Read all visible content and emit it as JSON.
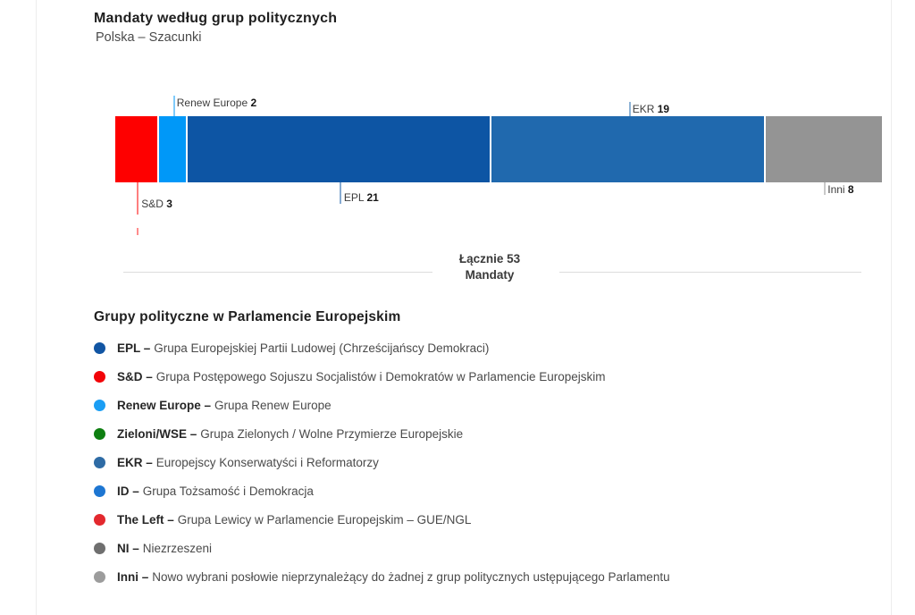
{
  "header": {
    "title": "Mandaty według grup politycznych",
    "subtitle": "Polska – Szacunki"
  },
  "chart_data": {
    "type": "bar",
    "title": "Mandaty według grup politycznych",
    "subtitle": "Polska – Szacunki",
    "orientation": "horizontal-stacked",
    "total": 53,
    "total_label": "Łącznie 53",
    "total_sublabel": "Mandaty",
    "segments": [
      {
        "name": "S&D",
        "value": 3,
        "color": "#fe0000",
        "label_side": "below"
      },
      {
        "name": "Renew Europe",
        "value": 2,
        "color": "#0098f8",
        "label_side": "above"
      },
      {
        "name": "EPL",
        "value": 21,
        "color": "#0d55a4",
        "label_side": "below"
      },
      {
        "name": "EKR",
        "value": 19,
        "color": "#2069ae",
        "label_side": "above"
      },
      {
        "name": "Inni",
        "value": 8,
        "color": "#949494",
        "label_side": "below"
      }
    ]
  },
  "legend": {
    "title": "Grupy polityczne w Parlamencie Europejskim",
    "items": [
      {
        "label": "EPL –",
        "desc": "Grupa Europejskiej Partii Ludowej (Chrześcijańscy Demokraci)",
        "color": "#1155a3"
      },
      {
        "label": "S&D –",
        "desc": "Grupa Postępowego Sojuszu Socjalistów i Demokratów w Parlamencie Europejskim",
        "color": "#f20408"
      },
      {
        "label": "Renew Europe –",
        "desc": "Grupa Renew Europe",
        "color": "#1b9ef4"
      },
      {
        "label": "Zieloni/WSE –",
        "desc": "Grupa Zielonych / Wolne Przymierze Europejskie",
        "color": "#0e7f11"
      },
      {
        "label": "EKR –",
        "desc": "Europejscy Konserwatyści i Reformatorzy",
        "color": "#2e6ba5"
      },
      {
        "label": "ID –",
        "desc": "Grupa Tożsamość i Demokracja",
        "color": "#1d76d2"
      },
      {
        "label": "The Left –",
        "desc": "Grupa Lewicy w Parlamencie Europejskim – GUE/NGL",
        "color": "#e3282e"
      },
      {
        "label": "NI –",
        "desc": "Niezrzeszeni",
        "color": "#6f6f6f"
      },
      {
        "label": "Inni –",
        "desc": "Nowo wybrani posłowie nieprzynależący do żadnej z grup politycznych ustępującego Parlamentu",
        "color": "#9c9c9c"
      }
    ]
  }
}
